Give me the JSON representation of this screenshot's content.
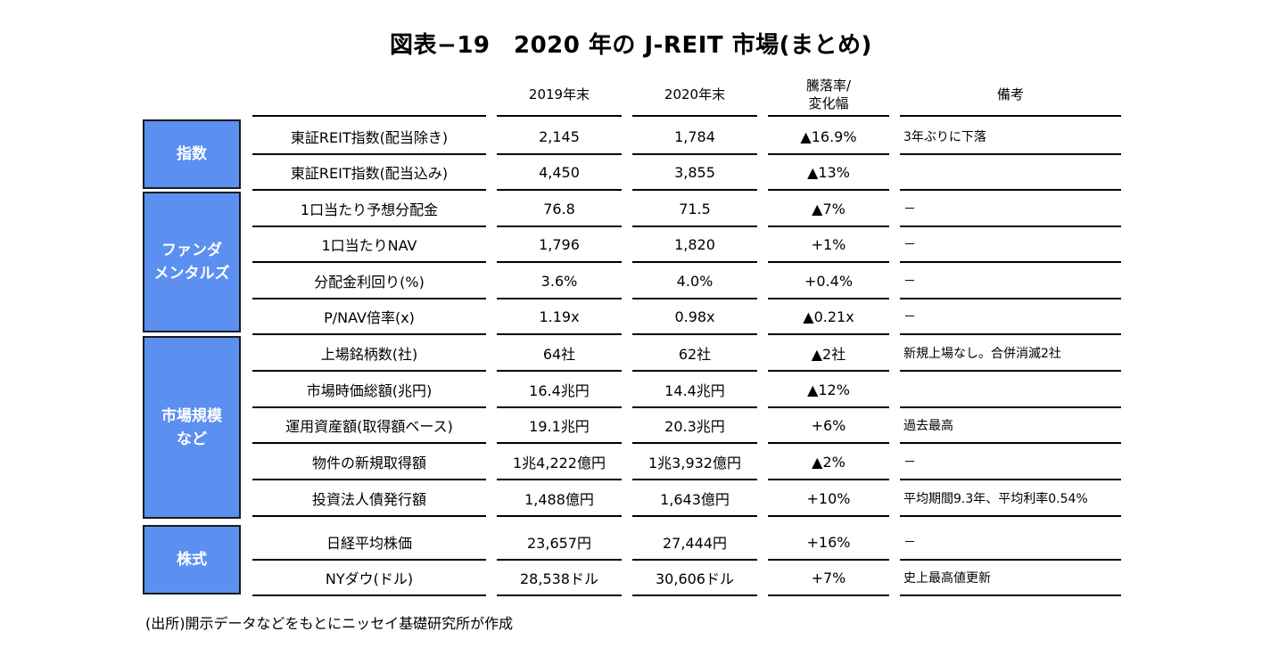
{
  "title": "図表−19　2020 年の J-REIT 市場(まとめ)",
  "headers": {
    "y2019": "2019年末",
    "y2020": "2020年末",
    "change": "騰落率/\n変化幅",
    "note": "備考"
  },
  "categories": [
    {
      "label": "指数"
    },
    {
      "label": "ファンダ\nメンタルズ"
    },
    {
      "label": "市場規模\nなど"
    },
    {
      "label": "株式"
    }
  ],
  "rows": [
    {
      "item": "東証REIT指数(配当除き)",
      "y2019": "2,145",
      "y2020": "1,784",
      "change": "▲16.9%",
      "note": "3年ぶりに下落"
    },
    {
      "item": "東証REIT指数(配当込み)",
      "y2019": "4,450",
      "y2020": "3,855",
      "change": "▲13%",
      "note": ""
    },
    {
      "item": "1口当たり予想分配金",
      "y2019": "76.8",
      "y2020": "71.5",
      "change": "▲7%",
      "note": "－"
    },
    {
      "item": "1口当たりNAV",
      "y2019": "1,796",
      "y2020": "1,820",
      "change": "+1%",
      "note": "－"
    },
    {
      "item": "分配金利回り(%)",
      "y2019": "3.6%",
      "y2020": "4.0%",
      "change": "+0.4%",
      "note": "－"
    },
    {
      "item": "P/NAV倍率(x)",
      "y2019": "1.19x",
      "y2020": "0.98x",
      "change": "▲0.21x",
      "note": "－"
    },
    {
      "item": "上場銘柄数(社)",
      "y2019": "64社",
      "y2020": "62社",
      "change": "▲2社",
      "note": "新規上場なし。合併消滅2社"
    },
    {
      "item": "市場時価総額(兆円)",
      "y2019": "16.4兆円",
      "y2020": "14.4兆円",
      "change": "▲12%",
      "note": ""
    },
    {
      "item": "運用資産額(取得額ベース)",
      "y2019": "19.1兆円",
      "y2020": "20.3兆円",
      "change": "+6%",
      "note": "過去最高"
    },
    {
      "item": "物件の新規取得額",
      "y2019": "1兆4,222億円",
      "y2020": "1兆3,932億円",
      "change": "▲2%",
      "note": "－"
    },
    {
      "item": "投資法人債発行額",
      "y2019": "1,488億円",
      "y2020": "1,643億円",
      "change": "+10%",
      "note": "平均期間9.3年、平均利率0.54%"
    },
    {
      "item": "日経平均株価",
      "y2019": "23,657円",
      "y2020": "27,444円",
      "change": "+16%",
      "note": "－"
    },
    {
      "item": "NYダウ(ドル)",
      "y2019": "28,538ドル",
      "y2020": "30,606ドル",
      "change": "+7%",
      "note": "史上最高値更新"
    }
  ],
  "source": "(出所)開示データなどをもとにニッセイ基礎研究所が作成"
}
